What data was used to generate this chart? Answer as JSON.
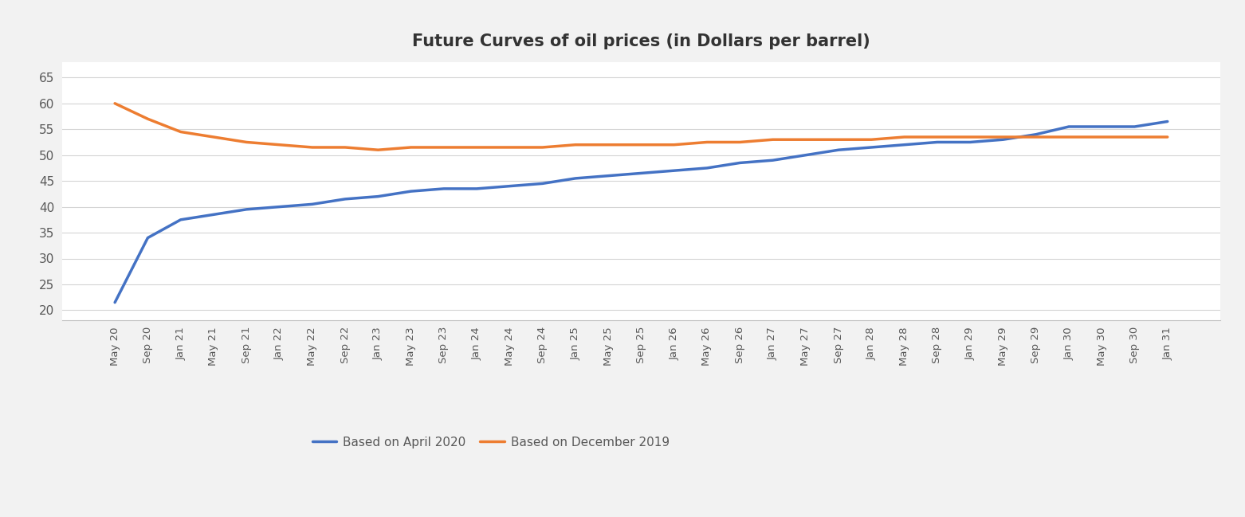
{
  "title": "Future Curves of oil prices (in Dollars per barrel)",
  "title_fontsize": 15,
  "title_fontweight": "bold",
  "figure_facecolor": "#f2f2f2",
  "plot_facecolor": "#ffffff",
  "outer_border_color": "#d0d0d0",
  "x_labels": [
    "May 20",
    "Sep 20",
    "Jan 21",
    "May 21",
    "Sep 21",
    "Jan 22",
    "May 22",
    "Sep 22",
    "Jan 23",
    "May 23",
    "Sep 23",
    "Jan 24",
    "May 24",
    "Sep 24",
    "Jan 25",
    "May 25",
    "Sep 25",
    "Jan 26",
    "May 26",
    "Sep 26",
    "Jan 27",
    "May 27",
    "Sep 27",
    "Jan 28",
    "May 28",
    "Sep 28",
    "Jan 29",
    "May 29",
    "Sep 29",
    "Jan 30",
    "May 30",
    "Sep 30",
    "Jan 31"
  ],
  "ylim": [
    18,
    68
  ],
  "yticks": [
    20,
    25,
    30,
    35,
    40,
    45,
    50,
    55,
    60,
    65
  ],
  "line_april_color": "#4472c4",
  "line_dec_color": "#ed7d31",
  "line_width": 2.5,
  "legend_labels": [
    "Based on April 2020",
    "Based on December 2019"
  ],
  "april_2020": [
    21.5,
    34.0,
    37.5,
    38.5,
    39.5,
    40.0,
    40.5,
    41.5,
    42.0,
    43.0,
    43.5,
    43.5,
    44.0,
    44.5,
    45.5,
    46.0,
    46.5,
    47.0,
    47.5,
    48.5,
    49.0,
    50.0,
    51.0,
    51.5,
    52.0,
    52.5,
    52.5,
    53.0,
    54.0,
    55.5,
    55.5,
    55.5,
    56.5
  ],
  "dec_2019": [
    60.0,
    57.0,
    54.5,
    53.5,
    52.5,
    52.0,
    51.5,
    51.5,
    51.0,
    51.5,
    51.5,
    51.5,
    51.5,
    51.5,
    52.0,
    52.0,
    52.0,
    52.0,
    52.5,
    52.5,
    53.0,
    53.0,
    53.0,
    53.0,
    53.5,
    53.5,
    53.5,
    53.5,
    53.5,
    53.5,
    53.5,
    53.5,
    53.5
  ]
}
